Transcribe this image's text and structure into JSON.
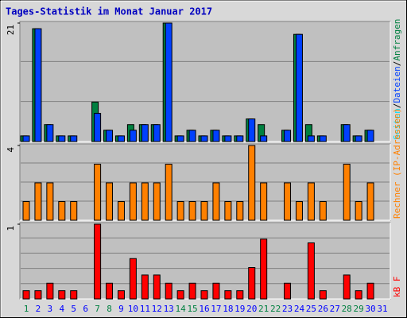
{
  "chart_data": [
    {
      "type": "bar",
      "title": "Tages-Statistik im Monat Januar 2017",
      "ylim": [
        0,
        21
      ],
      "yticks": [
        21
      ],
      "grid_divisions": 3,
      "series": [
        {
          "name": "Seiten",
          "color": "#00e0ff",
          "values": null
        },
        {
          "name": "Dateien",
          "color": "#0040ff",
          "values": [
            1,
            20,
            3,
            1,
            1,
            0,
            5,
            2,
            1,
            2,
            3,
            3,
            21,
            1,
            2,
            1,
            2,
            1,
            1,
            4,
            1,
            0,
            2,
            19,
            1,
            1,
            0,
            3,
            1,
            2,
            0
          ]
        },
        {
          "name": "Anfragen",
          "color": "#008040",
          "values": [
            1,
            20,
            3,
            1,
            1,
            0,
            7,
            2,
            1,
            3,
            3,
            3,
            21,
            1,
            2,
            1,
            2,
            1,
            1,
            4,
            3,
            0,
            2,
            19,
            3,
            1,
            0,
            3,
            1,
            2,
            0
          ]
        }
      ]
    },
    {
      "type": "bar",
      "ylim": [
        0,
        4
      ],
      "yticks": [
        4
      ],
      "grid_divisions": 4,
      "series": [
        {
          "name": "Rechner (IP-Adressen)",
          "color": "#ff8000",
          "values": [
            1,
            2,
            2,
            1,
            1,
            0,
            3,
            2,
            1,
            2,
            2,
            2,
            3,
            1,
            1,
            1,
            2,
            1,
            1,
            4,
            2,
            0,
            2,
            1,
            2,
            1,
            0,
            3,
            1,
            2,
            0
          ]
        }
      ]
    },
    {
      "type": "bar",
      "ylim": [
        0,
        1
      ],
      "yticks": [
        1
      ],
      "grid_divisions": 5,
      "series": [
        {
          "name": "kB F",
          "color": "#ff0000",
          "values": [
            0.11,
            0.11,
            0.21,
            0.11,
            0.11,
            0,
            1,
            0.21,
            0.11,
            0.54,
            0.32,
            0.32,
            0.21,
            0.11,
            0.21,
            0.11,
            0.21,
            0.11,
            0.11,
            0.42,
            0.8,
            0,
            0.21,
            0,
            0.75,
            0.11,
            0,
            0.32,
            0.11,
            0.21,
            0
          ]
        }
      ],
      "categories": [
        "1",
        "2",
        "3",
        "4",
        "5",
        "6",
        "7",
        "8",
        "9",
        "10",
        "11",
        "12",
        "13",
        "14",
        "15",
        "16",
        "17",
        "18",
        "19",
        "20",
        "21",
        "22",
        "23",
        "24",
        "25",
        "26",
        "27",
        "28",
        "29",
        "30",
        "31"
      ],
      "category_colors": [
        "#008040",
        "#0000ff",
        "#0000ff",
        "#0000ff",
        "#0000ff",
        "#0000ff",
        "#008040",
        "#008040",
        "#0000ff",
        "#0000ff",
        "#0000ff",
        "#0000ff",
        "#0000ff",
        "#008040",
        "#008040",
        "#0000ff",
        "#0000ff",
        "#0000ff",
        "#0000ff",
        "#0000ff",
        "#008040",
        "#008040",
        "#0000ff",
        "#0000ff",
        "#0000ff",
        "#0000ff",
        "#0000ff",
        "#008040",
        "#008040",
        "#0000ff",
        "#0000ff"
      ]
    }
  ]
}
